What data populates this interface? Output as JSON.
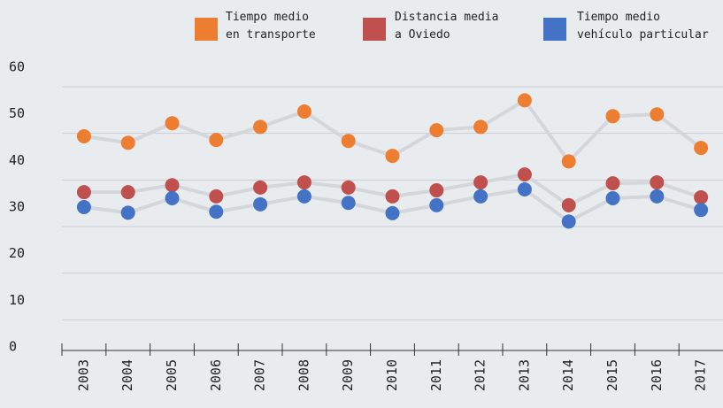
{
  "chart_data": {
    "type": "line",
    "categories": [
      "2003",
      "2004",
      "2005",
      "2006",
      "2007",
      "2008",
      "2009",
      "2010",
      "2011",
      "2012",
      "2013",
      "2014",
      "2015",
      "2016",
      "2017"
    ],
    "series": [
      {
        "name": "Tiempo medio en transporte",
        "color": "#ed7d31",
        "values": [
          45.2,
          43.8,
          48,
          44.4,
          47.2,
          50.5,
          44.2,
          41,
          46.5,
          47.2,
          52.9,
          39.8,
          49.5,
          49.9,
          42.7
        ]
      },
      {
        "name": "Distancia media a Oviedo",
        "color": "#c0504d",
        "values": [
          33.2,
          33.2,
          34.7,
          32.3,
          34.2,
          35.3,
          34.2,
          32.3,
          33.6,
          35.3,
          37,
          30.4,
          35.1,
          35.3,
          32.1
        ]
      },
      {
        "name": "Tiempo medio vehículo particular",
        "color": "#4472c4",
        "values": [
          30,
          28.8,
          31.9,
          29,
          30.6,
          32.3,
          30.9,
          28.7,
          30.4,
          32.3,
          33.8,
          26.9,
          31.9,
          32.3,
          29.4
        ]
      }
    ],
    "ylim": [
      0,
      60
    ],
    "yticks": [
      0,
      10,
      20,
      30,
      40,
      50,
      60
    ],
    "grid": true,
    "line_color": "#d3d6da"
  }
}
